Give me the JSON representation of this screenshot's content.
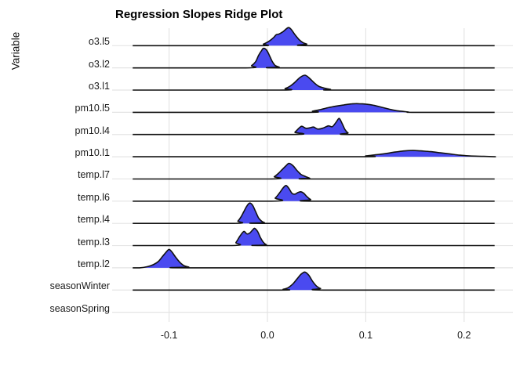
{
  "page": {
    "background": "#FFFFFF"
  },
  "chart_data": {
    "type": "ridgeline",
    "title": "Regression Slopes Ridge Plot",
    "xlabel": "",
    "ylabel": "Variable",
    "x_ticks": [
      {
        "value": -0.1,
        "label": "-0.1"
      },
      {
        "value": 0.0,
        "label": "0.0"
      },
      {
        "value": 0.1,
        "label": "0.1"
      },
      {
        "value": 0.2,
        "label": "0.2"
      }
    ],
    "x_range": [
      -0.158,
      0.25
    ],
    "baseline_range": [
      -0.137,
      0.231
    ],
    "grid": true,
    "legend": "none",
    "colors": {
      "ridge_fill": "#4A4AF0",
      "ridge_outline": "#111111",
      "gridline": "#E4E4E4",
      "background": "#FFFFFF",
      "text": "#1A1A1A"
    },
    "categories_top_to_bottom": [
      "o3.l5",
      "o3.l2",
      "o3.l1",
      "pm10.l5",
      "pm10.l4",
      "pm10.l1",
      "temp.l7",
      "temp.l6",
      "temp.l4",
      "temp.l3",
      "temp.l2",
      "seasonWinter",
      "seasonSpring"
    ],
    "series": [
      {
        "name": "o3.l5",
        "baseline": true,
        "peak_x": 0.021,
        "points": [
          [
            -0.01,
            0
          ],
          [
            -0.004,
            2
          ],
          [
            0.002,
            6
          ],
          [
            0.006,
            10
          ],
          [
            0.009,
            14
          ],
          [
            0.012,
            15
          ],
          [
            0.016,
            18
          ],
          [
            0.021,
            23
          ],
          [
            0.024,
            21
          ],
          [
            0.028,
            14
          ],
          [
            0.032,
            8
          ],
          [
            0.036,
            4
          ],
          [
            0.04,
            2
          ],
          [
            0.046,
            0
          ]
        ]
      },
      {
        "name": "o3.l2",
        "baseline": true,
        "peak_x": -0.004,
        "points": [
          [
            -0.022,
            0
          ],
          [
            -0.016,
            3
          ],
          [
            -0.012,
            8
          ],
          [
            -0.009,
            16
          ],
          [
            -0.006,
            22
          ],
          [
            -0.004,
            25
          ],
          [
            -0.001,
            23
          ],
          [
            0.002,
            16
          ],
          [
            0.005,
            8
          ],
          [
            0.008,
            3
          ],
          [
            0.012,
            1
          ],
          [
            0.016,
            0
          ]
        ]
      },
      {
        "name": "o3.l1",
        "baseline": true,
        "peak_x": 0.038,
        "points": [
          [
            0.012,
            0
          ],
          [
            0.018,
            2
          ],
          [
            0.023,
            5
          ],
          [
            0.028,
            10
          ],
          [
            0.033,
            16
          ],
          [
            0.038,
            19
          ],
          [
            0.042,
            16
          ],
          [
            0.047,
            10
          ],
          [
            0.052,
            5
          ],
          [
            0.058,
            2.5
          ],
          [
            0.064,
            1
          ],
          [
            0.071,
            0
          ]
        ]
      },
      {
        "name": "pm10.l5",
        "baseline": true,
        "peak_x": 0.093,
        "points": [
          [
            0.036,
            0
          ],
          [
            0.046,
            1.5
          ],
          [
            0.054,
            3.5
          ],
          [
            0.062,
            6
          ],
          [
            0.07,
            8
          ],
          [
            0.078,
            9.5
          ],
          [
            0.086,
            10.8
          ],
          [
            0.093,
            11
          ],
          [
            0.1,
            10.5
          ],
          [
            0.108,
            9
          ],
          [
            0.116,
            6.5
          ],
          [
            0.124,
            4
          ],
          [
            0.132,
            2
          ],
          [
            0.143,
            0.5
          ],
          [
            0.15,
            0
          ]
        ]
      },
      {
        "name": "pm10.l4",
        "baseline": true,
        "peak_x": 0.073,
        "points": [
          [
            0.024,
            0
          ],
          [
            0.028,
            3
          ],
          [
            0.032,
            8
          ],
          [
            0.035,
            10.5
          ],
          [
            0.039,
            8
          ],
          [
            0.043,
            8.5
          ],
          [
            0.047,
            9.5
          ],
          [
            0.051,
            7
          ],
          [
            0.056,
            8
          ],
          [
            0.062,
            11
          ],
          [
            0.066,
            10
          ],
          [
            0.07,
            16
          ],
          [
            0.073,
            20.5
          ],
          [
            0.076,
            14
          ],
          [
            0.079,
            6
          ],
          [
            0.082,
            2
          ],
          [
            0.086,
            0
          ]
        ]
      },
      {
        "name": "pm10.l1",
        "baseline": true,
        "peak_x": 0.149,
        "points": [
          [
            0.09,
            0
          ],
          [
            0.1,
            1
          ],
          [
            0.11,
            2.5
          ],
          [
            0.12,
            4
          ],
          [
            0.13,
            6
          ],
          [
            0.14,
            7.5
          ],
          [
            0.148,
            8
          ],
          [
            0.156,
            7.5
          ],
          [
            0.166,
            6.5
          ],
          [
            0.176,
            5
          ],
          [
            0.186,
            3.5
          ],
          [
            0.196,
            2
          ],
          [
            0.206,
            1
          ],
          [
            0.22,
            0.5
          ],
          [
            0.231,
            0
          ]
        ]
      },
      {
        "name": "temp.l7",
        "baseline": true,
        "peak_x": 0.022,
        "points": [
          [
            0.002,
            0
          ],
          [
            0.007,
            3
          ],
          [
            0.011,
            7
          ],
          [
            0.015,
            12
          ],
          [
            0.019,
            17
          ],
          [
            0.022,
            20
          ],
          [
            0.026,
            17
          ],
          [
            0.03,
            11
          ],
          [
            0.034,
            6
          ],
          [
            0.039,
            3
          ],
          [
            0.043,
            1
          ],
          [
            0.047,
            0
          ]
        ]
      },
      {
        "name": "temp.l6",
        "baseline": true,
        "peak_x": 0.019,
        "points": [
          [
            0.004,
            0
          ],
          [
            0.008,
            4
          ],
          [
            0.012,
            10
          ],
          [
            0.016,
            17
          ],
          [
            0.019,
            20
          ],
          [
            0.022,
            16
          ],
          [
            0.025,
            10
          ],
          [
            0.028,
            9
          ],
          [
            0.031,
            11
          ],
          [
            0.034,
            12
          ],
          [
            0.037,
            10
          ],
          [
            0.04,
            6
          ],
          [
            0.044,
            2
          ],
          [
            0.048,
            0
          ]
        ]
      },
      {
        "name": "temp.l4",
        "baseline": true,
        "peak_x": -0.018,
        "points": [
          [
            -0.034,
            0
          ],
          [
            -0.03,
            3
          ],
          [
            -0.027,
            8
          ],
          [
            -0.024,
            15
          ],
          [
            -0.021,
            22
          ],
          [
            -0.018,
            26
          ],
          [
            -0.015,
            23
          ],
          [
            -0.012,
            15
          ],
          [
            -0.009,
            7
          ],
          [
            -0.006,
            3
          ],
          [
            -0.003,
            1
          ],
          [
            0.0,
            0
          ]
        ]
      },
      {
        "name": "temp.l3",
        "baseline": true,
        "peak_x": -0.013,
        "points": [
          [
            -0.036,
            0
          ],
          [
            -0.032,
            4
          ],
          [
            -0.028,
            12
          ],
          [
            -0.024,
            18
          ],
          [
            -0.021,
            15
          ],
          [
            -0.018,
            16
          ],
          [
            -0.015,
            20
          ],
          [
            -0.013,
            22
          ],
          [
            -0.01,
            18
          ],
          [
            -0.007,
            10
          ],
          [
            -0.004,
            4
          ],
          [
            -0.001,
            1
          ],
          [
            0.002,
            0
          ]
        ]
      },
      {
        "name": "temp.l2",
        "baseline": true,
        "peak_x": -0.1,
        "points": [
          [
            -0.13,
            0
          ],
          [
            -0.122,
            1.5
          ],
          [
            -0.116,
            4
          ],
          [
            -0.111,
            8
          ],
          [
            -0.107,
            14
          ],
          [
            -0.103,
            20
          ],
          [
            -0.1,
            23.5
          ],
          [
            -0.097,
            20
          ],
          [
            -0.093,
            13
          ],
          [
            -0.089,
            7
          ],
          [
            -0.085,
            3
          ],
          [
            -0.08,
            1
          ],
          [
            -0.075,
            0
          ]
        ]
      },
      {
        "name": "seasonWinter",
        "baseline": true,
        "peak_x": 0.038,
        "points": [
          [
            0.01,
            0
          ],
          [
            0.016,
            1
          ],
          [
            0.021,
            3
          ],
          [
            0.026,
            8
          ],
          [
            0.03,
            14
          ],
          [
            0.034,
            20
          ],
          [
            0.038,
            23
          ],
          [
            0.042,
            19
          ],
          [
            0.046,
            11
          ],
          [
            0.05,
            5
          ],
          [
            0.054,
            2
          ],
          [
            0.06,
            0
          ]
        ]
      },
      {
        "name": "seasonSpring",
        "baseline": false,
        "peak_x": null,
        "points": []
      }
    ]
  }
}
